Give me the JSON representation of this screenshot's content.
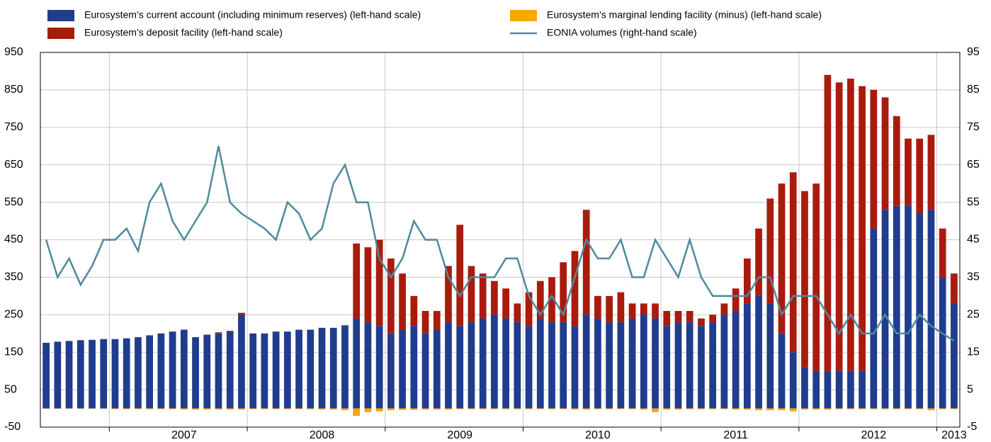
{
  "chart_data": {
    "type": "bar",
    "categories": [
      null,
      null,
      null,
      null,
      null,
      null,
      null,
      null,
      null,
      null,
      null,
      null,
      "2007",
      null,
      null,
      null,
      null,
      null,
      null,
      null,
      null,
      null,
      null,
      null,
      "2008",
      null,
      null,
      null,
      null,
      null,
      null,
      null,
      null,
      null,
      null,
      null,
      "2009",
      null,
      null,
      null,
      null,
      null,
      null,
      null,
      null,
      null,
      null,
      null,
      "2010",
      null,
      null,
      null,
      null,
      null,
      null,
      null,
      null,
      null,
      null,
      null,
      "2011",
      null,
      null,
      null,
      null,
      null,
      null,
      null,
      null,
      null,
      null,
      null,
      "2012",
      null,
      null,
      null,
      null,
      null,
      null,
      "2013"
    ],
    "series": [
      {
        "name": "Eurosystem’s current account (including minimum reserves) (left-hand scale)",
        "color": "#1f3c8e",
        "type": "bar",
        "values": [
          175,
          178,
          180,
          182,
          183,
          185,
          185,
          187,
          190,
          195,
          200,
          205,
          210,
          190,
          195,
          200,
          205,
          250,
          200,
          200,
          205,
          205,
          210,
          210,
          215,
          215,
          220,
          240,
          230,
          220,
          200,
          210,
          220,
          200,
          210,
          230,
          220,
          230,
          240,
          250,
          240,
          230,
          220,
          240,
          230,
          230,
          220,
          250,
          240,
          230,
          230,
          240,
          250,
          240,
          220,
          230,
          230,
          220,
          230,
          250,
          260,
          280,
          300,
          280,
          200,
          150,
          110,
          100,
          100,
          100,
          100,
          100,
          480,
          530,
          540,
          540,
          520,
          530,
          350,
          280
        ]
      },
      {
        "name": "Eurosystem’s marginal lending facility (minus) (left-hand scale)",
        "color": "#f5a800",
        "type": "bar",
        "values": [
          -1,
          -1,
          -1,
          -1,
          -1,
          -1,
          -2,
          -2,
          -2,
          -2,
          -2,
          -2,
          -3,
          -3,
          -3,
          -3,
          -3,
          -3,
          -2,
          -2,
          -2,
          -2,
          -2,
          -2,
          -3,
          -3,
          -5,
          -20,
          -10,
          -8,
          -5,
          -4,
          -4,
          -3,
          -3,
          -3,
          -2,
          -2,
          -2,
          -2,
          -2,
          -2,
          -2,
          -2,
          -2,
          -2,
          -3,
          -3,
          -2,
          -2,
          -2,
          -2,
          -3,
          -10,
          -3,
          -3,
          -2,
          -2,
          -2,
          -2,
          -3,
          -3,
          -5,
          -5,
          -5,
          -8,
          -3,
          -3,
          -3,
          -2,
          -2,
          -2,
          -2,
          -2,
          -2,
          -2,
          -2,
          -5,
          -2,
          -2
        ]
      },
      {
        "name": "Eurosystem’s deposit facility (left-hand scale)",
        "color": "#a91b0d",
        "type": "bar",
        "values": [
          0,
          0,
          0,
          0,
          0,
          0,
          0,
          0,
          0,
          0,
          0,
          0,
          0,
          0,
          2,
          3,
          2,
          5,
          0,
          0,
          0,
          0,
          0,
          0,
          0,
          0,
          2,
          200,
          200,
          230,
          200,
          150,
          80,
          60,
          50,
          150,
          270,
          150,
          120,
          90,
          80,
          50,
          90,
          100,
          120,
          160,
          200,
          280,
          60,
          70,
          80,
          40,
          30,
          40,
          40,
          30,
          30,
          20,
          20,
          30,
          60,
          120,
          180,
          280,
          400,
          480,
          470,
          500,
          790,
          770,
          780,
          760,
          370,
          300,
          240,
          180,
          200,
          200,
          130,
          80
        ]
      },
      {
        "name": "EONIA volumes (right-hand scale)",
        "color": "#4e8a9c",
        "type": "line",
        "axis": "y2",
        "values": [
          45,
          35,
          40,
          33,
          38,
          45,
          45,
          48,
          42,
          55,
          60,
          50,
          45,
          50,
          55,
          70,
          55,
          52,
          50,
          48,
          45,
          55,
          52,
          45,
          48,
          60,
          65,
          55,
          55,
          40,
          35,
          40,
          50,
          45,
          45,
          35,
          30,
          35,
          35,
          35,
          40,
          40,
          30,
          25,
          30,
          25,
          35,
          45,
          40,
          40,
          45,
          35,
          35,
          45,
          40,
          35,
          45,
          35,
          30,
          30,
          30,
          30,
          35,
          35,
          25,
          30,
          30,
          30,
          25,
          20,
          25,
          20,
          20,
          25,
          20,
          20,
          25,
          22,
          20,
          18
        ]
      }
    ],
    "ylim": [
      -50,
      950
    ],
    "yticks": [
      -50,
      50,
      150,
      250,
      350,
      450,
      550,
      650,
      750,
      850,
      950
    ],
    "y2lim": [
      -5,
      95
    ],
    "y2ticks": [
      -5,
      5,
      15,
      25,
      35,
      45,
      55,
      65,
      75,
      85,
      95
    ],
    "grid": true
  }
}
